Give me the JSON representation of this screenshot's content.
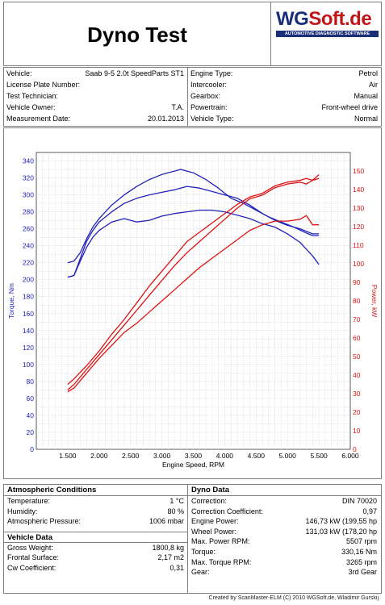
{
  "header": {
    "title": "Dyno Test",
    "logo_text_wg": "WG",
    "logo_text_soft": "Soft",
    "logo_text_de": ".de",
    "logo_subtitle": "AUTOMOTIVE DIAGNOSTIC SOFTWARE"
  },
  "vehicle_info": {
    "left": [
      {
        "label": "Vehicle:",
        "value": "Saab 9-5 2.0t SpeedParts ST1"
      },
      {
        "label": "License Plate Number:",
        "value": ""
      },
      {
        "label": "Test Technician:",
        "value": ""
      },
      {
        "label": "Vehicle Owner:",
        "value": "T.A."
      },
      {
        "label": "Measurement  Date:",
        "value": "20.01.2013"
      }
    ],
    "right": [
      {
        "label": "Engine Type:",
        "value": "Petrol"
      },
      {
        "label": "Intercooler:",
        "value": "Air"
      },
      {
        "label": "Gearbox:",
        "value": "Manual"
      },
      {
        "label": "Powertrain:",
        "value": "Front-wheel  drive"
      },
      {
        "label": "Vehicle Type:",
        "value": "Normal"
      }
    ]
  },
  "chart_data": {
    "type": "line",
    "xlabel": "Engine Speed, RPM",
    "ylabel_left": "Torque, Nm",
    "ylabel_right": "Power, kW",
    "xlim": [
      1000,
      6000
    ],
    "ylim_left": [
      0,
      350
    ],
    "ylim_right": [
      0,
      160
    ],
    "x_ticks": [
      "1.500",
      "2.000",
      "2.500",
      "3.000",
      "3.500",
      "4.000",
      "4.500",
      "5.000",
      "5.500",
      "6.000"
    ],
    "x_tick_values": [
      1500,
      2000,
      2500,
      3000,
      3500,
      4000,
      4500,
      5000,
      5500,
      6000
    ],
    "y_left_ticks": [
      "0",
      "20",
      "40",
      "60",
      "80",
      "100",
      "120",
      "140",
      "160",
      "180",
      "200",
      "220",
      "240",
      "260",
      "280",
      "300",
      "320",
      "340"
    ],
    "y_right_ticks": [
      "0",
      "10",
      "20",
      "30",
      "40",
      "50",
      "60",
      "70",
      "80",
      "90",
      "100",
      "110",
      "120",
      "130",
      "140",
      "150"
    ],
    "grid": true,
    "colors": {
      "torque": "#2222bb",
      "power": "#dd1111"
    },
    "series": [
      {
        "axis": "left",
        "x": [
          1500,
          1600,
          1700,
          1800,
          1900,
          2000,
          2200,
          2400,
          2600,
          2800,
          3000,
          3200,
          3300,
          3500,
          3700,
          3900,
          4100,
          4300,
          4500,
          4700,
          4900,
          5100,
          5300,
          5400,
          5500
        ],
        "y": [
          220,
          222,
          232,
          248,
          262,
          272,
          288,
          300,
          310,
          318,
          324,
          328,
          330,
          326,
          318,
          308,
          296,
          290,
          282,
          274,
          268,
          262,
          255,
          252,
          252
        ]
      },
      {
        "axis": "left",
        "x": [
          1500,
          1600,
          1700,
          1800,
          1900,
          2000,
          2200,
          2400,
          2600,
          2800,
          3000,
          3200,
          3400,
          3600,
          3800,
          4000,
          4200,
          4400,
          4600,
          4800,
          5000,
          5200,
          5400,
          5500
        ],
        "y": [
          203,
          205,
          225,
          245,
          258,
          268,
          280,
          290,
          296,
          300,
          303,
          306,
          310,
          308,
          304,
          300,
          296,
          288,
          278,
          270,
          264,
          260,
          254,
          254
        ]
      },
      {
        "axis": "left",
        "x": [
          1500,
          1600,
          1700,
          1800,
          1900,
          2000,
          2200,
          2400,
          2600,
          2800,
          3000,
          3200,
          3400,
          3600,
          3800,
          4000,
          4200,
          4400,
          4600,
          4800,
          5000,
          5200,
          5400,
          5500
        ],
        "y": [
          203,
          205,
          222,
          238,
          250,
          258,
          268,
          272,
          268,
          270,
          275,
          278,
          280,
          282,
          282,
          280,
          276,
          272,
          266,
          262,
          254,
          244,
          228,
          218
        ]
      },
      {
        "axis": "right",
        "x": [
          1500,
          1600,
          1800,
          2000,
          2200,
          2400,
          2600,
          2800,
          3000,
          3200,
          3400,
          3600,
          3800,
          4000,
          4200,
          4400,
          4600,
          4800,
          5000,
          5200,
          5300,
          5400,
          5500
        ],
        "y": [
          35,
          38,
          45,
          53,
          62,
          70,
          79,
          88,
          96,
          104,
          112,
          117,
          122,
          127,
          132,
          136,
          138,
          142,
          144,
          145,
          146,
          145,
          148
        ]
      },
      {
        "axis": "right",
        "x": [
          1500,
          1600,
          1800,
          2000,
          2200,
          2400,
          2600,
          2800,
          3000,
          3200,
          3400,
          3600,
          3800,
          4000,
          4200,
          4400,
          4600,
          4800,
          5000,
          5200,
          5300,
          5400,
          5500
        ],
        "y": [
          32,
          35,
          43,
          51,
          59,
          67,
          75,
          83,
          91,
          99,
          106,
          112,
          118,
          124,
          130,
          135,
          137,
          141,
          143,
          144,
          143,
          145,
          146
        ]
      },
      {
        "axis": "right",
        "x": [
          1500,
          1600,
          1800,
          2000,
          2200,
          2400,
          2600,
          2800,
          3000,
          3200,
          3400,
          3600,
          3800,
          4000,
          4200,
          4400,
          4600,
          4800,
          5000,
          5200,
          5300,
          5400,
          5500
        ],
        "y": [
          31,
          33,
          41,
          49,
          56,
          63,
          68,
          74,
          80,
          86,
          92,
          98,
          103,
          108,
          113,
          118,
          121,
          123,
          123,
          124,
          126,
          121,
          121
        ]
      }
    ]
  },
  "atmospheric": {
    "heading": "Atmospheric  Conditions",
    "rows": [
      {
        "label": "Temperature:",
        "value": "1 °C"
      },
      {
        "label": "Humidity:",
        "value": "80 %"
      },
      {
        "label": "Atmospheric Pressure:",
        "value": "1006 mbar"
      }
    ]
  },
  "vehicle_data": {
    "heading": "Vehicle Data",
    "rows": [
      {
        "label": "Gross Weight:",
        "value": "1800,8 kg"
      },
      {
        "label": "Frontal Surface:",
        "value": "2,17 m2"
      },
      {
        "label": "Cw Coefficient:",
        "value": "0,31"
      }
    ]
  },
  "dyno_data": {
    "heading": "Dyno Data",
    "rows": [
      {
        "label": "Correction:",
        "value": "DIN  70020"
      },
      {
        "label": "Correction  Coefficient:",
        "value": "0,97"
      },
      {
        "label": "Engine Power:",
        "value": "146,73 kW (199,55 hp"
      },
      {
        "label": "Wheel Power:",
        "value": "131,03 kW (178,20 hp"
      },
      {
        "label": "Max. Power RPM:",
        "value": "5507 rpm"
      },
      {
        "label": "Torque:",
        "value": "330,16 Nm"
      },
      {
        "label": "Max. Torque RPM:",
        "value": "3265 rpm"
      },
      {
        "label": "Gear:",
        "value": "3rd Gear"
      }
    ]
  },
  "footer": {
    "text": "Created by ScanMaster-ELM (C) 2010 WGSoft.de, Wladimir Gurskij"
  }
}
